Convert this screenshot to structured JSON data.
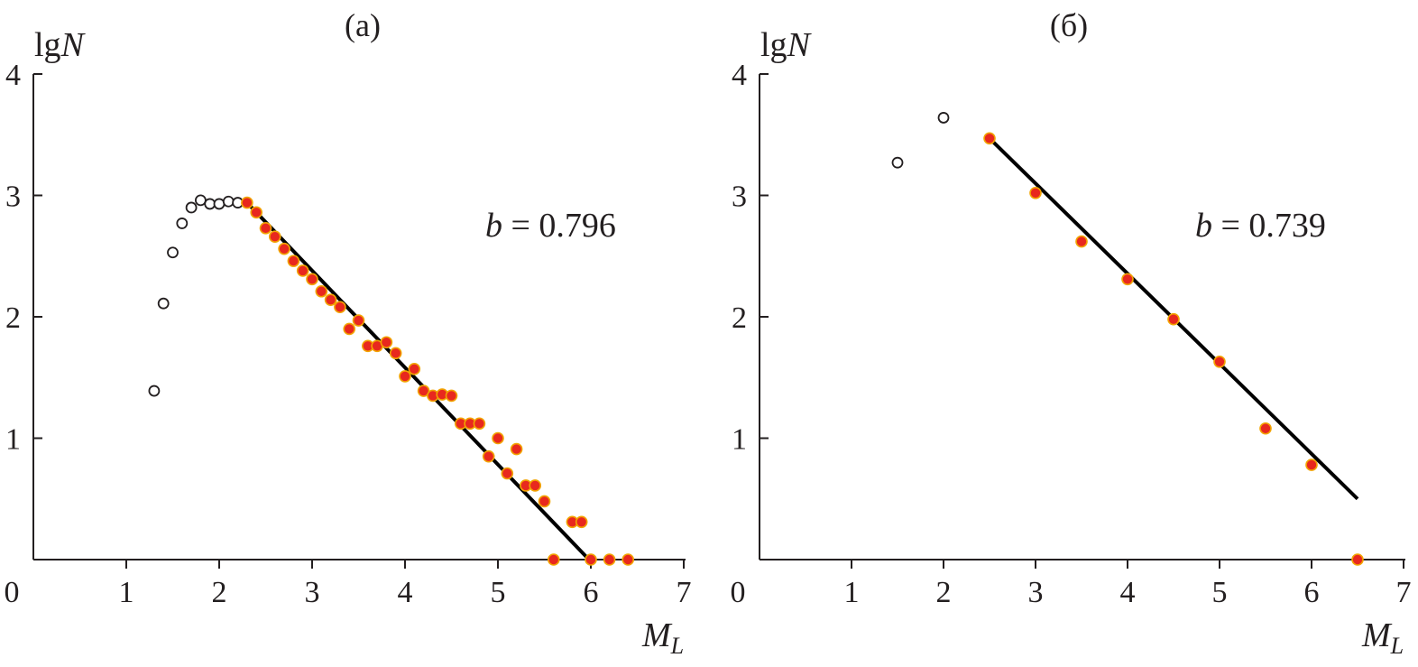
{
  "colors": {
    "axis": "#231f20",
    "filled_marker": "#e8281e",
    "filled_marker_edge": "#f2a300",
    "open_marker": "#231f20",
    "fit_line": "#000000"
  },
  "chart_data": [
    {
      "type": "scatter",
      "title": "(a)",
      "xlabel_main": "M",
      "xlabel_sub": "L",
      "ylabel_main": "lg",
      "ylabel_var": "N",
      "xlim": [
        0,
        7
      ],
      "ylim": [
        0,
        4
      ],
      "xticks": [
        0,
        1,
        2,
        3,
        4,
        5,
        6,
        7
      ],
      "yticks": [
        1,
        2,
        3,
        4
      ],
      "xtick_labels": [
        "0",
        "1",
        "2",
        "3",
        "4",
        "5",
        "6",
        "7"
      ],
      "ytick_labels": [
        "1",
        "2",
        "3",
        "4"
      ],
      "annotation_var": "b",
      "annotation_value": " = 0.796",
      "series": [
        {
          "marker": "open",
          "points": [
            [
              1.3,
              1.39
            ],
            [
              1.4,
              2.11
            ],
            [
              1.5,
              2.53
            ],
            [
              1.6,
              2.77
            ],
            [
              1.7,
              2.9
            ],
            [
              1.8,
              2.96
            ],
            [
              1.9,
              2.93
            ],
            [
              2.0,
              2.93
            ],
            [
              2.1,
              2.95
            ],
            [
              2.2,
              2.94
            ]
          ]
        },
        {
          "marker": "filled",
          "points": [
            [
              2.3,
              2.94
            ],
            [
              2.4,
              2.86
            ],
            [
              2.5,
              2.73
            ],
            [
              2.6,
              2.66
            ],
            [
              2.7,
              2.56
            ],
            [
              2.8,
              2.46
            ],
            [
              2.9,
              2.38
            ],
            [
              3.0,
              2.31
            ],
            [
              3.1,
              2.21
            ],
            [
              3.2,
              2.14
            ],
            [
              3.3,
              2.08
            ],
            [
              3.4,
              1.9
            ],
            [
              3.5,
              1.97
            ],
            [
              3.6,
              1.76
            ],
            [
              3.7,
              1.76
            ],
            [
              3.8,
              1.79
            ],
            [
              3.9,
              1.7
            ],
            [
              4.0,
              1.51
            ],
            [
              4.1,
              1.57
            ],
            [
              4.2,
              1.39
            ],
            [
              4.3,
              1.35
            ],
            [
              4.4,
              1.36
            ],
            [
              4.5,
              1.35
            ],
            [
              4.6,
              1.12
            ],
            [
              4.7,
              1.12
            ],
            [
              4.8,
              1.12
            ],
            [
              4.9,
              0.85
            ],
            [
              5.0,
              1.0
            ],
            [
              5.1,
              0.71
            ],
            [
              5.2,
              0.91
            ],
            [
              5.3,
              0.61
            ],
            [
              5.4,
              0.61
            ],
            [
              5.5,
              0.48
            ],
            [
              5.6,
              0.0
            ],
            [
              5.8,
              0.31
            ],
            [
              5.9,
              0.31
            ],
            [
              6.0,
              0.0
            ],
            [
              6.2,
              0.0
            ],
            [
              6.4,
              0.0
            ]
          ]
        }
      ],
      "fit_line": [
        [
          2.3,
          2.94
        ],
        [
          5.98,
          0.0
        ]
      ]
    },
    {
      "type": "scatter",
      "title": "(б)",
      "xlabel_main": "M",
      "xlabel_sub": "L",
      "ylabel_main": "lg",
      "ylabel_var": "N",
      "xlim": [
        0,
        7
      ],
      "ylim": [
        0,
        4
      ],
      "xticks": [
        0,
        1,
        2,
        3,
        4,
        5,
        6,
        7
      ],
      "yticks": [
        1,
        2,
        3,
        4
      ],
      "xtick_labels": [
        "0",
        "1",
        "2",
        "3",
        "4",
        "5",
        "6",
        "7"
      ],
      "ytick_labels": [
        "1",
        "2",
        "3",
        "4"
      ],
      "annotation_var": "b",
      "annotation_value": " = 0.739",
      "series": [
        {
          "marker": "open",
          "points": [
            [
              1.5,
              3.27
            ],
            [
              2.0,
              3.64
            ]
          ]
        },
        {
          "marker": "filled",
          "points": [
            [
              2.5,
              3.47
            ],
            [
              3.0,
              3.02
            ],
            [
              3.5,
              2.62
            ],
            [
              4.0,
              2.31
            ],
            [
              4.5,
              1.98
            ],
            [
              5.0,
              1.63
            ],
            [
              5.5,
              1.08
            ],
            [
              6.0,
              0.78
            ],
            [
              6.5,
              0.0
            ]
          ]
        }
      ],
      "fit_line": [
        [
          2.5,
          3.47
        ],
        [
          6.5,
          0.5
        ]
      ]
    }
  ]
}
